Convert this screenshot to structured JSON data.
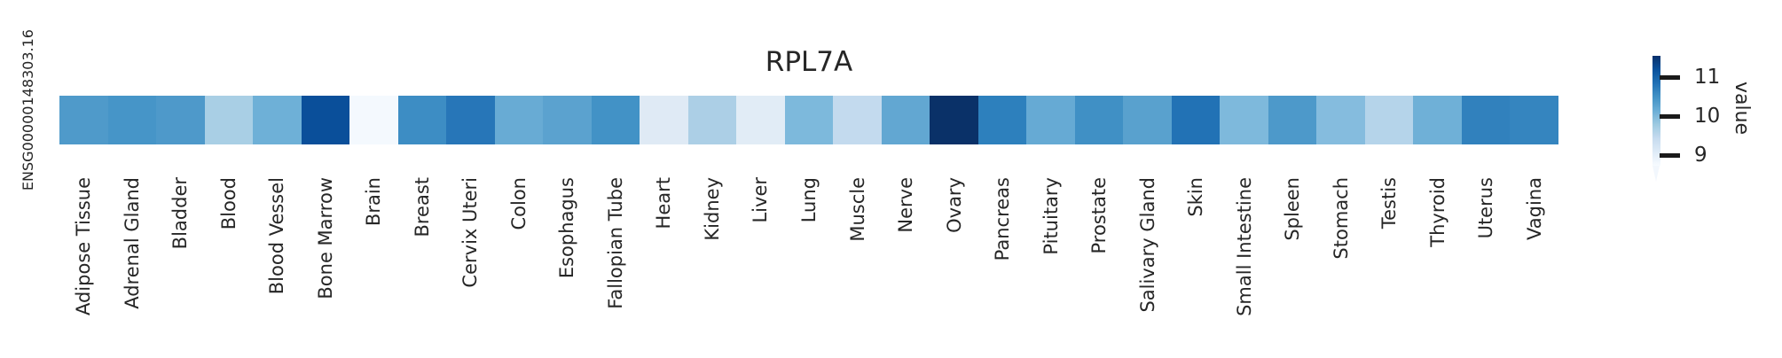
{
  "figure": {
    "title": "RPL7A",
    "row_label": "ENSG00000148303.16",
    "background": "#ffffff",
    "text_color": "#262626"
  },
  "colorbar": {
    "label": "value",
    "tick_labels": [
      "11",
      "10",
      "9"
    ],
    "gradient_stops_top_to_bottom": [
      "#08306b",
      "#08519c",
      "#2171b5",
      "#4292c6",
      "#6baed6",
      "#9ecae1",
      "#c6dbef",
      "#deebf7",
      "#f7fbff"
    ],
    "tick_color": "#1a1a1a",
    "extend_min_triangle": true
  },
  "chart_data": {
    "type": "heatmap",
    "title": "RPL7A",
    "rows": [
      "ENSG00000148303.16"
    ],
    "columns": [
      "Adipose Tissue",
      "Adrenal Gland",
      "Bladder",
      "Blood",
      "Blood Vessel",
      "Bone Marrow",
      "Brain",
      "Breast",
      "Cervix Uteri",
      "Colon",
      "Esophagus",
      "Fallopian Tube",
      "Heart",
      "Kidney",
      "Liver",
      "Lung",
      "Muscle",
      "Nerve",
      "Ovary",
      "Pancreas",
      "Pituitary",
      "Prostate",
      "Salivary Gland",
      "Skin",
      "Small Intestine",
      "Spleen",
      "Stomach",
      "Testis",
      "Thyroid",
      "Uterus",
      "Vagina"
    ],
    "values": [
      [
        10.3,
        10.4,
        10.3,
        9.7,
        10.1,
        11.2,
        8.8,
        10.5,
        10.7,
        10.1,
        10.2,
        10.5,
        9.0,
        9.7,
        9.0,
        10.0,
        9.4,
        10.2,
        11.5,
        10.7,
        10.2,
        10.5,
        10.3,
        10.8,
        9.9,
        10.3,
        9.9,
        9.6,
        10.1,
        10.7,
        10.6
      ]
    ],
    "cell_colors": [
      [
        "#4f9aca",
        "#4695c8",
        "#4e99ca",
        "#a9cfe5",
        "#6eb0d7",
        "#0a4f9a",
        "#f4f9fe",
        "#3d8dc4",
        "#2776b8",
        "#68abd4",
        "#5ba2cf",
        "#4292c6",
        "#dfeaf5",
        "#accfe6",
        "#e1ecf6",
        "#7db9dc",
        "#c3daee",
        "#62a7d2",
        "#0a3168",
        "#2d80bd",
        "#66aad4",
        "#4090c5",
        "#59a1ce",
        "#2272b5",
        "#7eb9dc",
        "#4d99ca",
        "#85bcde",
        "#b5d4ea",
        "#6fb0d7",
        "#3181bd",
        "#3585bf"
      ]
    ],
    "colormap": "Blues",
    "colorbar": {
      "label": "value",
      "ticks": [
        11,
        10,
        9
      ],
      "vmin": 8.73,
      "vmax": 11.55
    },
    "grid": false,
    "legend_position": "right-colorbar"
  }
}
